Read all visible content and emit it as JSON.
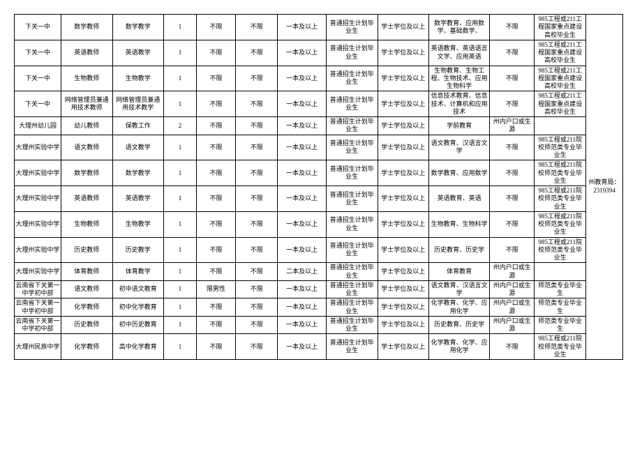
{
  "side_note": "州教育局：2319394",
  "rows": [
    {
      "c0": "下关一中",
      "c1": "数学教师",
      "c2": "数学教学",
      "c3": "1",
      "c4": "不限",
      "c5": "不限",
      "c6": "一本及以上",
      "c7": "普通招生计划毕业生",
      "c8": "学士学位及以上",
      "c9": "数学教育、应用数学、基础数学、",
      "c10": "不限",
      "c11": "985工程或211工程国家重点建设高校毕业生"
    },
    {
      "c0": "下关一中",
      "c1": "英语教师",
      "c2": "英语教学",
      "c3": "1",
      "c4": "不限",
      "c5": "不限",
      "c6": "一本及以上",
      "c7": "普通招生计划毕业生",
      "c8": "学士学位及以上",
      "c9": "英语教育、英语语言文学、应用英语",
      "c10": "不限",
      "c11": "985工程或211工程国家重点建设高校毕业生"
    },
    {
      "c0": "下关一中",
      "c1": "生物教师",
      "c2": "生物教学",
      "c3": "1",
      "c4": "不限",
      "c5": "不限",
      "c6": "一本及以上",
      "c7": "普通招生计划毕业生",
      "c8": "学士学位及以上",
      "c9": "生物教育、生物工程、生物技术、应用生物科学",
      "c10": "不限",
      "c11": "985工程或211工程国家重点建设高校毕业生"
    },
    {
      "c0": "下关一中",
      "c1": "网络管理员兼通用技术教师",
      "c2": "网络管理员兼通用技术教学",
      "c3": "1",
      "c4": "不限",
      "c5": "不限",
      "c6": "一本及以上",
      "c7": "普通招生计划毕业生",
      "c8": "学士学位及以上",
      "c9": "信息技术教育、信息技术、计算机和应用技术",
      "c10": "不限",
      "c11": "985工程或211工程国家重点建设高校毕业生"
    },
    {
      "c0": "大理州幼儿园",
      "c1": "幼儿教师",
      "c2": "保教工作",
      "c3": "2",
      "c4": "不限",
      "c5": "不限",
      "c6": "一本及以上",
      "c7": "普通招生计划毕业生",
      "c8": "学士学位及以上",
      "c9": "学前教育",
      "c10": "州内户口或生源",
      "c11": ""
    },
    {
      "c0": "大理州实验中学",
      "c1": "语文教师",
      "c2": "语文教学",
      "c3": "1",
      "c4": "不限",
      "c5": "不限",
      "c6": "一本及以上",
      "c7": "普通招生计划毕业生",
      "c8": "学士学位及以上",
      "c9": "语文教育、汉语言文学",
      "c10": "不限",
      "c11": "985工程或211院校师范类专业毕业生"
    },
    {
      "c0": "大理州实验中学",
      "c1": "数学教师",
      "c2": "数学教学",
      "c3": "1",
      "c4": "不限",
      "c5": "不限",
      "c6": "一本及以上",
      "c7": "普通招生计划毕业生",
      "c8": "学士学位及以上",
      "c9": "数学教育、应用数学",
      "c10": "不限",
      "c11": "985工程或211院校师范类专业毕业生"
    },
    {
      "c0": "大理州实验中学",
      "c1": "英语教师",
      "c2": "英语教学",
      "c3": "1",
      "c4": "不限",
      "c5": "不限",
      "c6": "一本及以上",
      "c7": "普通招生计划毕业生",
      "c8": "学士学位及以上",
      "c9": "英语教育、英语",
      "c10": "不限",
      "c11": "985工程或211院校师范类专业毕业生"
    },
    {
      "c0": "大理州实验中学",
      "c1": "生物教师",
      "c2": "生物教学",
      "c3": "1",
      "c4": "不限",
      "c5": "不限",
      "c6": "一本及以上",
      "c7": "普通招生计划毕业生",
      "c8": "学士学位及以上",
      "c9": "生物教育、生物科学",
      "c10": "不限",
      "c11": "985工程或211院校师范类专业毕业生"
    },
    {
      "c0": "大理州实验中学",
      "c1": "历史教师",
      "c2": "历史教学",
      "c3": "1",
      "c4": "不限",
      "c5": "不限",
      "c6": "一本及以上",
      "c7": "普通招生计划毕业生",
      "c8": "学士学位及以上",
      "c9": "历史教育、历史学",
      "c10": "不限",
      "c11": "985工程或211院校师范类专业毕业生"
    },
    {
      "c0": "大理州实验中学",
      "c1": "体育教师",
      "c2": "体育教学",
      "c3": "1",
      "c4": "不限",
      "c5": "不限",
      "c6": "二本及以上",
      "c7": "普通招生计划毕业生",
      "c8": "学士学位及以上",
      "c9": "体育教育",
      "c10": "州内户口或生源",
      "c11": ""
    },
    {
      "c0": "云南省下关第一中学初中部",
      "c1": "语文教师",
      "c2": "初中语文教育",
      "c3": "1",
      "c4": "限男性",
      "c5": "不限",
      "c6": "一本及以上",
      "c7": "普通招生计划毕业生",
      "c8": "学士学位及以上",
      "c9": "语文教育、汉语言文学",
      "c10": "州内户口或生源",
      "c11": "师范类专业毕业生"
    },
    {
      "c0": "云南省下关第一中学初中部",
      "c1": "化学教师",
      "c2": "初中化学教育",
      "c3": "1",
      "c4": "不限",
      "c5": "不限",
      "c6": "一本及以上",
      "c7": "普通招生计划毕业生",
      "c8": "学士学位及以上",
      "c9": "化学教育、化学、应用化学",
      "c10": "州内户口或生源",
      "c11": "师范类专业毕业生"
    },
    {
      "c0": "云南省下关第一中学初中部",
      "c1": "历史教师",
      "c2": "初中历史教育",
      "c3": "1",
      "c4": "不限",
      "c5": "不限",
      "c6": "一本及以上",
      "c7": "普通招生计划毕业生",
      "c8": "学士学位及以上",
      "c9": "历史教育、历史学",
      "c10": "州内户口或生源",
      "c11": "师范类专业毕业生"
    },
    {
      "c0": "大理州民族中学",
      "c1": "化学教师",
      "c2": "高中化学教育",
      "c3": "1",
      "c4": "不限",
      "c5": "不限",
      "c6": "一本及以上",
      "c7": "普通招生计划毕业生",
      "c8": "学士学位及以上",
      "c9": "化学教育、化学、应用化学",
      "c10": "不限",
      "c11": "985工程或211院校师范类专业毕业生"
    }
  ]
}
